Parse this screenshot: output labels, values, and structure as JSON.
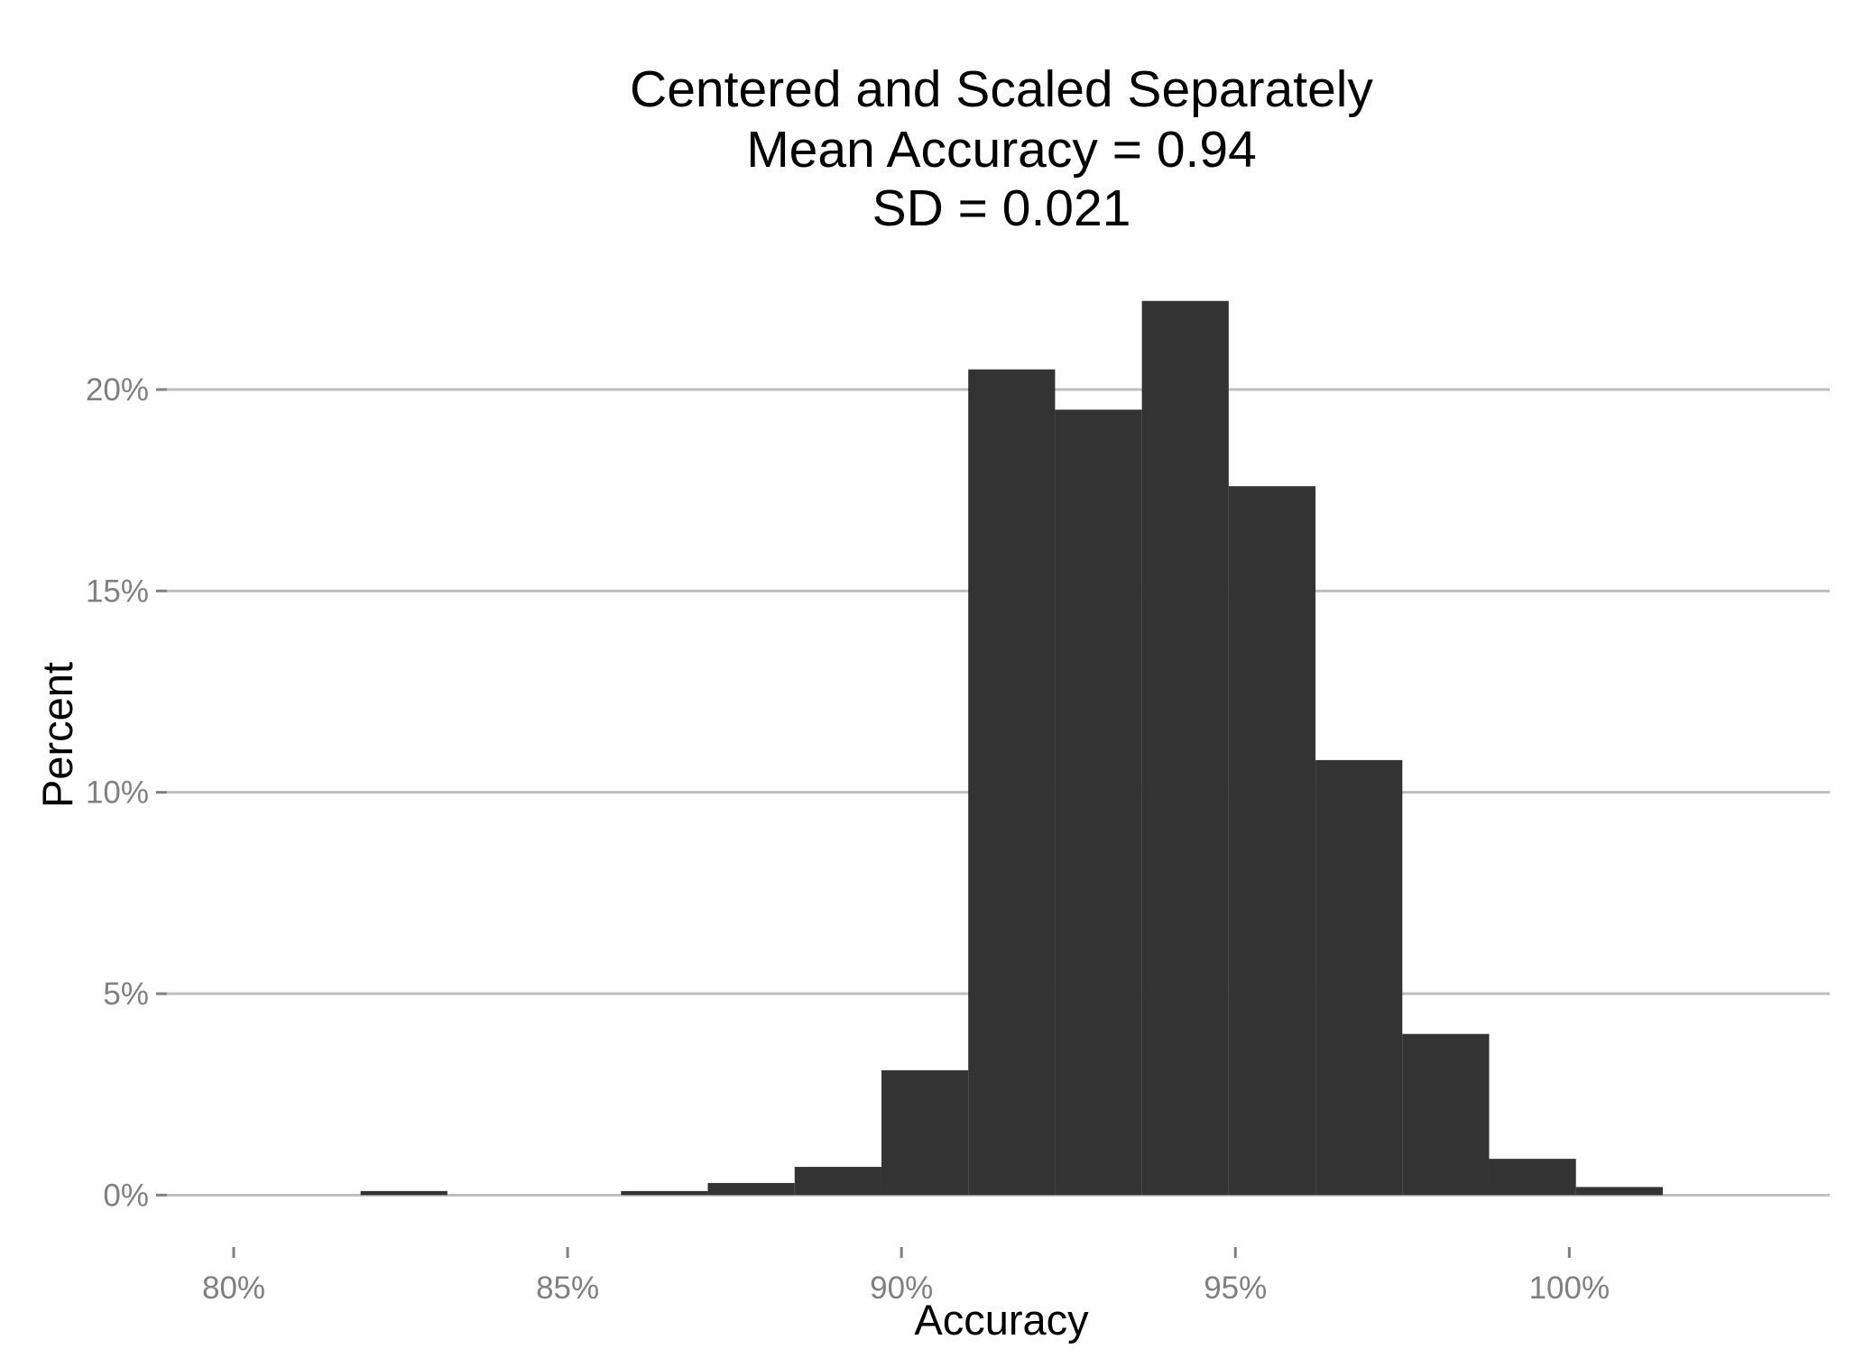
{
  "chart_data": {
    "type": "bar",
    "title_lines": [
      "Centered and Scaled Separately",
      "Mean Accuracy = 0.94",
      "SD = 0.021"
    ],
    "xlabel": "Accuracy",
    "ylabel": "Percent",
    "x_ticks": [
      {
        "value": 0.8,
        "label": "80%"
      },
      {
        "value": 0.85,
        "label": "85%"
      },
      {
        "value": 0.9,
        "label": "90%"
      },
      {
        "value": 0.95,
        "label": "95%"
      },
      {
        "value": 1.0,
        "label": "100%"
      }
    ],
    "y_ticks": [
      {
        "value": 0,
        "label": "0%"
      },
      {
        "value": 5,
        "label": "5%"
      },
      {
        "value": 10,
        "label": "10%"
      },
      {
        "value": 15,
        "label": "15%"
      },
      {
        "value": 20,
        "label": "20%"
      }
    ],
    "xlim": [
      0.79,
      1.039
    ],
    "ylim": [
      -1,
      23
    ],
    "bin_width": 0.013,
    "bins": [
      {
        "x_start": 0.819,
        "value": 0.1
      },
      {
        "x_start": 0.832,
        "value": 0
      },
      {
        "x_start": 0.845,
        "value": 0
      },
      {
        "x_start": 0.858,
        "value": 0.1
      },
      {
        "x_start": 0.871,
        "value": 0.3
      },
      {
        "x_start": 0.884,
        "value": 0.7
      },
      {
        "x_start": 0.897,
        "value": 3.1
      },
      {
        "x_start": 0.91,
        "value": 20.5
      },
      {
        "x_start": 0.923,
        "value": 19.5
      },
      {
        "x_start": 0.936,
        "value": 22.2
      },
      {
        "x_start": 0.949,
        "value": 17.6
      },
      {
        "x_start": 0.962,
        "value": 10.8
      },
      {
        "x_start": 0.975,
        "value": 4.0
      },
      {
        "x_start": 0.988,
        "value": 0.9
      },
      {
        "x_start": 1.001,
        "value": 0.2
      }
    ],
    "bar_color": "#333333",
    "grid_color": "#bebebe",
    "tick_color": "#808080",
    "grid": true
  }
}
